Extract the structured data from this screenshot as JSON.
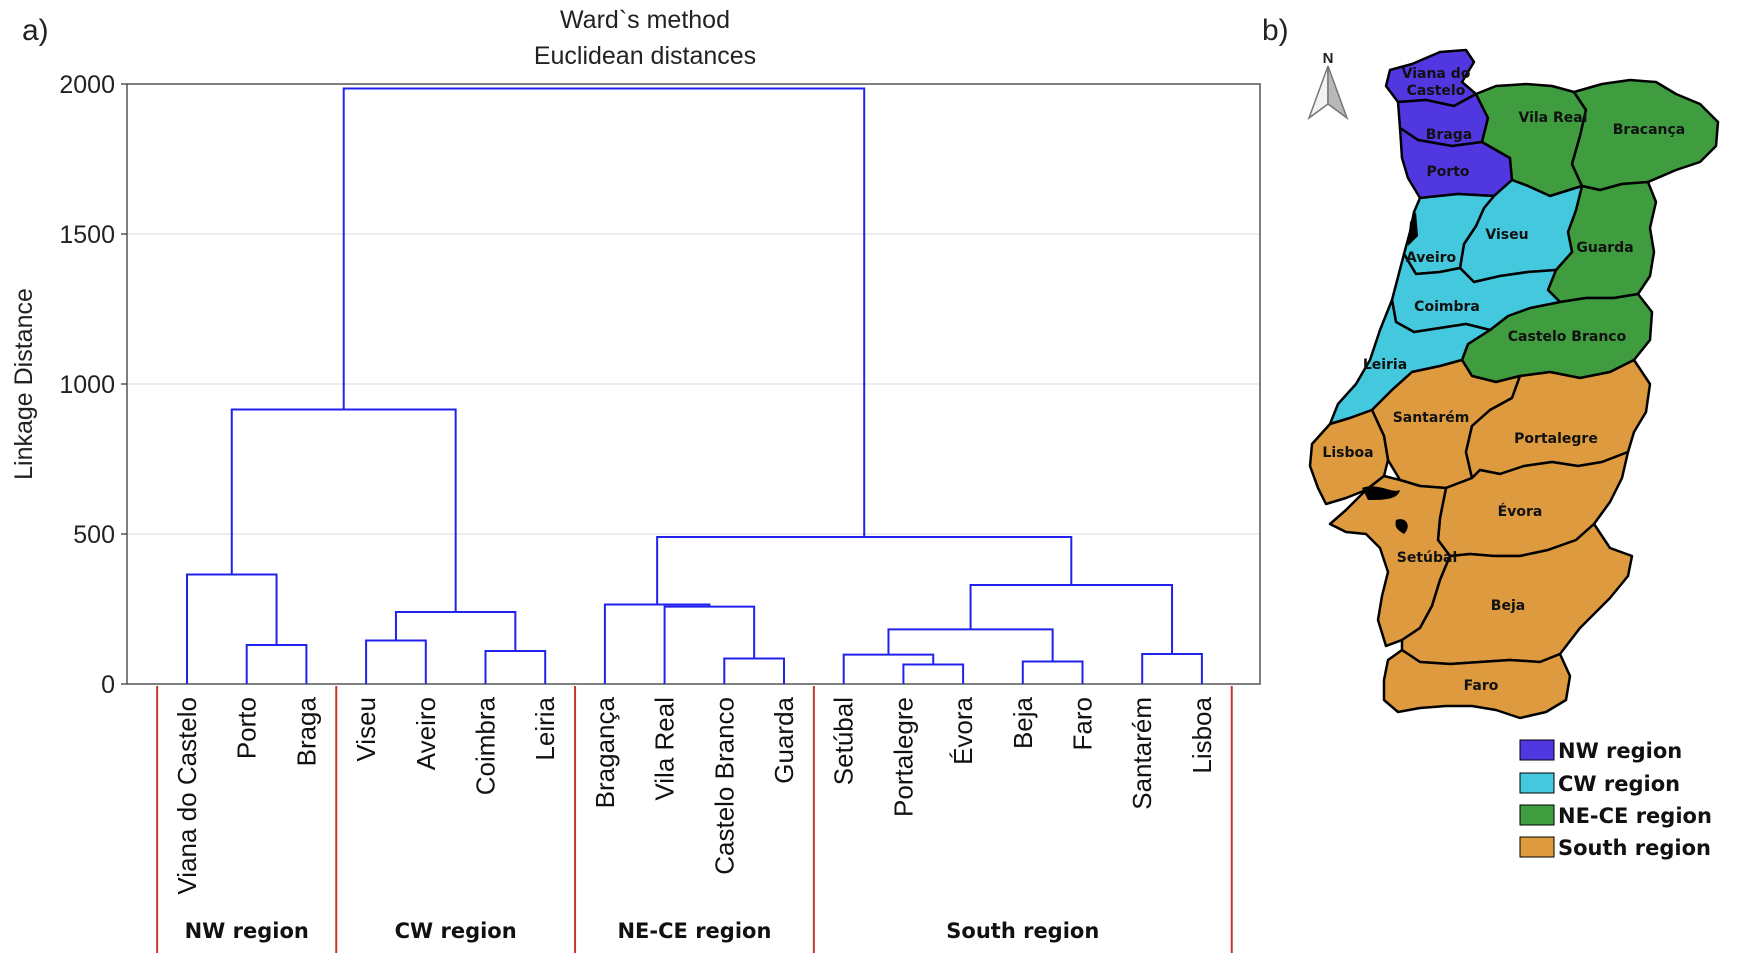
{
  "panel_a_label": "a)",
  "panel_b_label": "b)",
  "chart_data": {
    "type": "dendrogram",
    "title": "Ward`s method",
    "subtitle": "Euclidean distances",
    "ylabel": "Linkage Distance",
    "ylim": [
      0,
      2000
    ],
    "yticks": [
      0,
      500,
      1000,
      1500,
      2000
    ],
    "grid": true,
    "leaves": [
      "Viana do Castelo",
      "Porto",
      "Braga",
      "Viseu",
      "Aveiro",
      "Coimbra",
      "Leiria",
      "Bragança",
      "Vila Real",
      "Castelo Branco",
      "Guarda",
      "Setúbal",
      "Portalegre",
      "Évora",
      "Beja",
      "Faro",
      "Santarém",
      "Lisboa"
    ],
    "merges": [
      {
        "left": "L1",
        "right": "L2",
        "height": 130
      },
      {
        "left": "L0",
        "right": "C0",
        "height": 365
      },
      {
        "left": "L3",
        "right": "L4",
        "height": 145
      },
      {
        "left": "L5",
        "right": "L6",
        "height": 110
      },
      {
        "left": "C2",
        "right": "C3",
        "height": 240
      },
      {
        "left": "C1",
        "right": "C4",
        "height": 915
      },
      {
        "left": "L9",
        "right": "L10",
        "height": 85
      },
      {
        "left": "L8",
        "right": "C6",
        "height": 258
      },
      {
        "left": "L7",
        "right": "C7",
        "height": 265
      },
      {
        "left": "L12",
        "right": "L13",
        "height": 65
      },
      {
        "left": "L11",
        "right": "C9",
        "height": 98
      },
      {
        "left": "L14",
        "right": "L15",
        "height": 75
      },
      {
        "left": "C10",
        "right": "C11",
        "height": 182
      },
      {
        "left": "L16",
        "right": "L17",
        "height": 100
      },
      {
        "left": "C12",
        "right": "C13",
        "height": 330
      },
      {
        "left": "C8",
        "right": "C14",
        "height": 490
      },
      {
        "left": "C5",
        "right": "C15",
        "height": 1985
      }
    ],
    "groups": [
      {
        "name": "NW region",
        "first": 0,
        "last": 2
      },
      {
        "name": "CW region",
        "first": 3,
        "last": 6
      },
      {
        "name": "NE-CE region",
        "first": 7,
        "last": 10
      },
      {
        "name": "South region",
        "first": 11,
        "last": 17
      }
    ]
  },
  "map": {
    "north_label": "N",
    "districts": [
      "Viana do Castelo",
      "Braga",
      "Porto",
      "Vila Real",
      "Bracança",
      "Viseu",
      "Aveiro",
      "Guarda",
      "Coimbra",
      "Castelo Branco",
      "Leiria",
      "Santarém",
      "Portalegre",
      "Lisboa",
      "Évora",
      "Setúbal",
      "Beja",
      "Faro"
    ],
    "colors": {
      "nw": "#5137e0",
      "cw": "#44c8dd",
      "ne": "#3f9c3f",
      "south": "#dd9a3e"
    },
    "legend": [
      {
        "label": "NW region",
        "color": "#5137e0"
      },
      {
        "label": "CW region",
        "color": "#44c8dd"
      },
      {
        "label": "NE-CE region",
        "color": "#3f9c3f"
      },
      {
        "label": "South region",
        "color": "#dd9a3e"
      }
    ]
  }
}
